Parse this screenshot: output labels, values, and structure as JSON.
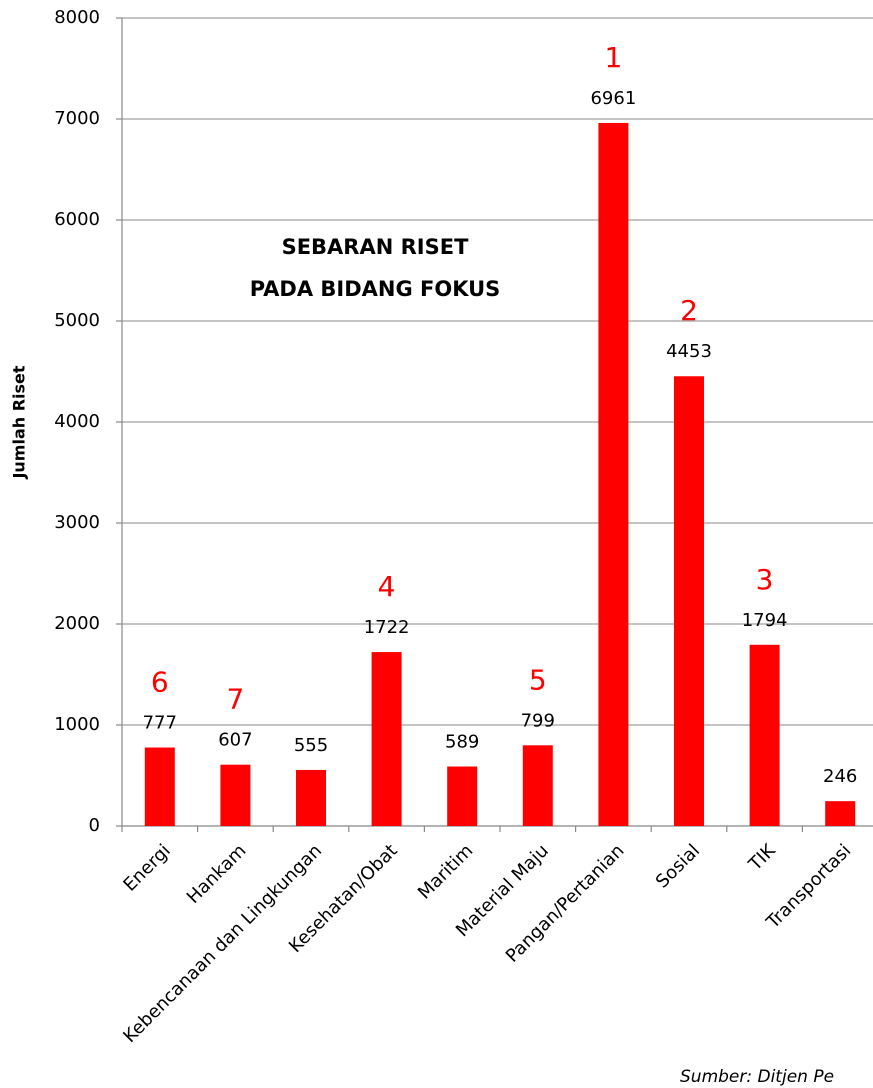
{
  "chart_data": {
    "type": "bar",
    "title": [
      "SEBARAN RISET",
      "PADA BIDANG FOKUS"
    ],
    "y_label": "Jumlah Riset",
    "source": "Sumber: Ditjen Pe",
    "categories": [
      "Energi",
      "Hankam",
      "Kebencanaan dan Lingkungan",
      "Kesehatan/Obat",
      "Maritim",
      "Material Maju",
      "Pangan/Pertanian",
      "Sosial",
      "TIK",
      "Transportasi"
    ],
    "values": [
      777,
      607,
      555,
      1722,
      589,
      799,
      6961,
      4453,
      1794,
      246
    ],
    "rank_labels": [
      "6",
      "7",
      null,
      "4",
      null,
      "5",
      "1",
      "2",
      "3",
      null
    ],
    "color": "#ff0000",
    "ylim": [
      0,
      8000
    ],
    "yticks": [
      0,
      1000,
      2000,
      3000,
      4000,
      5000,
      6000,
      7000,
      8000
    ],
    "grid": true
  }
}
